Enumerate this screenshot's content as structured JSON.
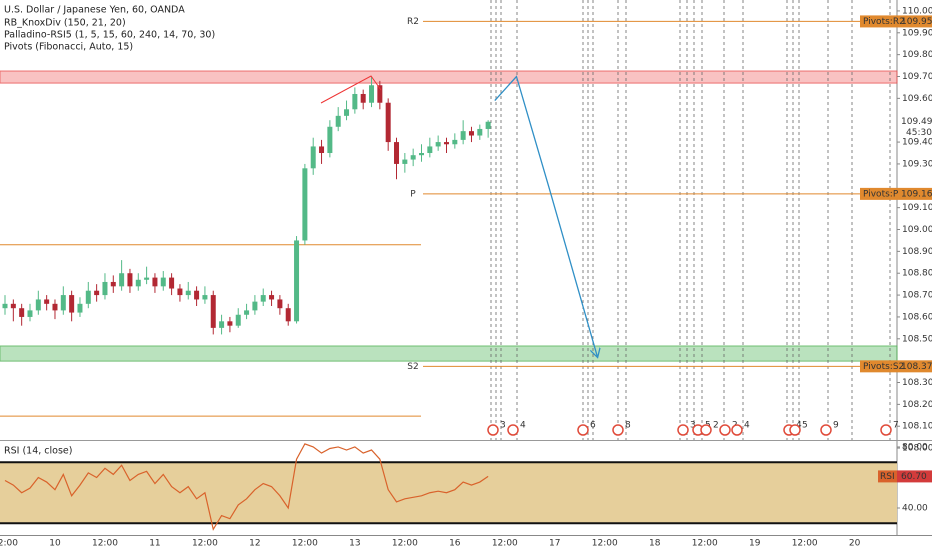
{
  "chart_data": [
    {
      "type": "candlestick",
      "title": "U.S. Dollar / Japanese Yen, 60, OANDA",
      "indicators": [
        "RB_KnoxDiv (150, 21, 20)",
        "Palladino-RSI5 (1, 5, 15, 60, 240, 14, 70, 30)",
        "Pivots (Fibonacci, Auto, 15)"
      ],
      "categories": [
        "12:00",
        null,
        null,
        null,
        null,
        null,
        "10",
        null,
        null,
        null,
        null,
        null,
        "12:00",
        null,
        null,
        null,
        null,
        null,
        "11",
        null,
        null,
        null,
        null,
        null,
        "12:00",
        null,
        null,
        null,
        null,
        null,
        "12",
        null,
        null,
        null,
        null,
        null,
        "12:00",
        null,
        null,
        null,
        null,
        null,
        "13",
        null,
        null,
        null,
        null,
        null,
        "12:00",
        null,
        null,
        null,
        null,
        null,
        "16",
        null,
        null,
        null,
        null,
        null,
        "12:00",
        null,
        null,
        null,
        null,
        null,
        "17",
        null,
        null,
        null,
        null,
        null,
        "12:00",
        null,
        null,
        null,
        null,
        null,
        "18",
        null,
        null,
        null,
        null,
        null,
        "12:00",
        null,
        null,
        null,
        null,
        null,
        "19",
        null,
        null,
        null,
        null,
        null,
        "12:00",
        null,
        null,
        null,
        null,
        null,
        "20",
        null,
        null,
        null,
        null
      ],
      "open": [
        108.64,
        108.66,
        108.64,
        108.6,
        108.63,
        108.68,
        108.66,
        108.63,
        108.7,
        108.62,
        108.66,
        108.72,
        108.7,
        108.76,
        108.74,
        108.8,
        108.74,
        108.77,
        108.78,
        108.74,
        108.78,
        108.73,
        108.7,
        108.72,
        108.68,
        108.7,
        108.55,
        108.58,
        108.56,
        108.61,
        108.63,
        108.67,
        108.7,
        108.68,
        108.64,
        108.58,
        108.95,
        109.28,
        109.38,
        109.35,
        109.47,
        109.52,
        109.55,
        109.62,
        109.58,
        109.66,
        109.58,
        109.4,
        109.3,
        109.32,
        109.34,
        109.35,
        109.38,
        109.4,
        109.39,
        109.41,
        109.45,
        109.43,
        109.46,
        null,
        null,
        null,
        null,
        null,
        null,
        null,
        null,
        null,
        null,
        null,
        null,
        null,
        null,
        null,
        null,
        null,
        null,
        null,
        null,
        null,
        null,
        null,
        null,
        null,
        null,
        null,
        null,
        null,
        null,
        null,
        null,
        null,
        null,
        null,
        null,
        null,
        null,
        null,
        null,
        null,
        null,
        null,
        null,
        null,
        null,
        null,
        null
      ],
      "high": [
        108.7,
        108.68,
        108.66,
        108.66,
        108.72,
        108.7,
        108.68,
        108.74,
        108.72,
        108.69,
        108.76,
        108.75,
        108.8,
        108.79,
        108.86,
        108.82,
        108.8,
        108.83,
        108.8,
        108.81,
        108.8,
        108.75,
        108.76,
        108.74,
        108.74,
        108.72,
        108.61,
        108.6,
        108.64,
        108.66,
        108.7,
        108.73,
        108.72,
        108.7,
        108.66,
        108.97,
        109.3,
        109.42,
        109.41,
        109.5,
        109.56,
        109.59,
        109.65,
        109.64,
        109.7,
        109.68,
        109.6,
        109.42,
        109.35,
        109.37,
        109.39,
        109.42,
        109.43,
        109.42,
        109.44,
        109.5,
        109.47,
        109.48,
        109.5,
        null,
        null,
        null,
        null,
        null,
        null,
        null,
        null,
        null,
        null,
        null,
        null,
        null,
        null,
        null,
        null,
        null,
        null,
        null,
        null,
        null,
        null,
        null,
        null,
        null,
        null,
        null,
        null,
        null,
        null,
        null,
        null,
        null,
        null,
        null,
        null,
        null,
        null,
        null,
        null,
        null,
        null,
        null,
        null,
        null,
        null,
        null,
        null
      ],
      "low": [
        108.61,
        108.58,
        108.56,
        108.58,
        108.61,
        108.63,
        108.59,
        108.61,
        108.58,
        108.6,
        108.64,
        108.67,
        108.68,
        108.71,
        108.72,
        108.71,
        108.72,
        108.75,
        108.71,
        108.72,
        108.7,
        108.67,
        108.68,
        108.65,
        108.66,
        108.52,
        108.52,
        108.53,
        108.55,
        108.59,
        108.61,
        108.65,
        108.65,
        108.61,
        108.56,
        108.57,
        108.93,
        109.25,
        109.3,
        109.33,
        109.45,
        109.5,
        109.53,
        109.55,
        109.56,
        109.55,
        109.36,
        109.23,
        109.26,
        109.29,
        109.31,
        109.33,
        109.36,
        109.35,
        109.37,
        109.39,
        109.4,
        109.41,
        109.42,
        null,
        null,
        null,
        null,
        null,
        null,
        null,
        null,
        null,
        null,
        null,
        null,
        null,
        null,
        null,
        null,
        null,
        null,
        null,
        null,
        null,
        null,
        null,
        null,
        null,
        null,
        null,
        null,
        null,
        null,
        null,
        null,
        null,
        null,
        null,
        null,
        null,
        null,
        null,
        null,
        null,
        null,
        null,
        null,
        null,
        null,
        null,
        null
      ],
      "close": [
        108.66,
        108.64,
        108.6,
        108.63,
        108.68,
        108.66,
        108.63,
        108.7,
        108.62,
        108.66,
        108.72,
        108.7,
        108.76,
        108.74,
        108.8,
        108.74,
        108.77,
        108.78,
        108.74,
        108.78,
        108.73,
        108.7,
        108.72,
        108.68,
        108.7,
        108.55,
        108.58,
        108.56,
        108.61,
        108.63,
        108.67,
        108.7,
        108.68,
        108.64,
        108.58,
        108.95,
        109.28,
        109.38,
        109.35,
        109.47,
        109.52,
        109.55,
        109.62,
        109.58,
        109.66,
        109.58,
        109.4,
        109.3,
        109.32,
        109.34,
        109.35,
        109.38,
        109.4,
        109.39,
        109.41,
        109.45,
        109.43,
        109.46,
        109.493,
        null,
        null,
        null,
        null,
        null,
        null,
        null,
        null,
        null,
        null,
        null,
        null,
        null,
        null,
        null,
        null,
        null,
        null,
        null,
        null,
        null,
        null,
        null,
        null,
        null,
        null,
        null,
        null,
        null,
        null,
        null,
        null,
        null,
        null,
        null,
        null,
        null,
        null,
        null,
        null,
        null,
        null,
        null,
        null,
        null,
        null,
        null,
        null
      ],
      "up_color": "#53b987",
      "down_color": "#b22833",
      "countdown": "45:30",
      "ylim": [
        108.037,
        110.05
      ],
      "yticks": [
        {
          "value": 110.0,
          "label": "110.000"
        },
        {
          "value": 109.9,
          "label": "109.900"
        },
        {
          "value": 109.8,
          "label": "109.800"
        },
        {
          "value": 109.7,
          "label": "109.700"
        },
        {
          "value": 109.6,
          "label": "109.600"
        },
        {
          "value": 109.4,
          "label": "109.400"
        },
        {
          "value": 109.3,
          "label": "109.300"
        },
        {
          "value": 109.1,
          "label": "109.100"
        },
        {
          "value": 109.0,
          "label": "109.000"
        },
        {
          "value": 108.9,
          "label": "108.900"
        },
        {
          "value": 108.8,
          "label": "108.800"
        },
        {
          "value": 108.7,
          "label": "108.700"
        },
        {
          "value": 108.6,
          "label": "108.600"
        },
        {
          "value": 108.5,
          "label": "108.500"
        },
        {
          "value": 108.3,
          "label": "108.300"
        },
        {
          "value": 108.2,
          "label": "108.200"
        },
        {
          "value": 108.1,
          "label": "108.100"
        },
        {
          "value": 108.0,
          "label": "108.000"
        }
      ],
      "grid": false,
      "pivot_color": "#e0892e",
      "pivots": [
        {
          "name": "R2",
          "axis_label": "Pivots:R2",
          "value": 109.952
        },
        {
          "name": "P",
          "axis_label": "Pivots:P",
          "value": 109.163
        },
        {
          "name": "S2",
          "axis_label": "Pivots:S2",
          "value": 108.374
        }
      ],
      "prior_pivot_levels": [
        108.93,
        108.146
      ],
      "zones": [
        {
          "color": "#f8b4b4",
          "border": "#e84a4a",
          "range": [
            109.67,
            109.725
          ]
        },
        {
          "color": "#a9dcae",
          "border": "#4caf50",
          "range": [
            108.398,
            108.467
          ]
        }
      ],
      "projection": {
        "color": "#2f8fc6",
        "x": [
          58.8,
          61.4,
          65.4,
          71.1
        ],
        "values": [
          109.59,
          109.7,
          109.18,
          108.42
        ]
      },
      "event_labels": [
        "3",
        "4",
        "6",
        "8",
        "3",
        "5",
        "2",
        "2",
        "4",
        "4",
        "5",
        "9",
        "7"
      ]
    },
    {
      "type": "line",
      "title": "RSI (14, close)",
      "color": "#d9622b",
      "values": [
        58,
        55,
        50,
        53,
        60,
        57,
        52,
        62,
        48,
        55,
        63,
        60,
        66,
        62,
        68,
        58,
        62,
        64,
        56,
        62,
        54,
        50,
        54,
        46,
        50,
        26,
        35,
        33,
        42,
        46,
        52,
        56,
        54,
        48,
        40,
        72,
        82,
        80,
        76,
        79,
        80,
        78,
        80,
        76,
        78,
        72,
        52,
        44,
        46,
        47,
        48,
        50,
        51,
        50,
        52,
        57,
        55,
        57,
        60.7,
        null,
        null,
        null,
        null,
        null,
        null,
        null,
        null,
        null,
        null,
        null,
        null,
        null,
        null,
        null,
        null,
        null,
        null,
        null,
        null,
        null,
        null,
        null,
        null,
        null,
        null,
        null,
        null,
        null,
        null,
        null,
        null,
        null,
        null,
        null,
        null,
        null,
        null,
        null,
        null,
        null,
        null,
        null,
        null,
        null,
        null,
        null,
        null
      ],
      "ylim": [
        22.3,
        83.9
      ],
      "yticks": [
        {
          "value": 80,
          "label": "80.00"
        },
        {
          "value": 40,
          "label": "40.00"
        }
      ],
      "band": [
        30,
        70
      ],
      "band_color": "#e6cf9b",
      "current": {
        "name": "RSI",
        "value": 60.7,
        "label": "60.70"
      }
    }
  ]
}
